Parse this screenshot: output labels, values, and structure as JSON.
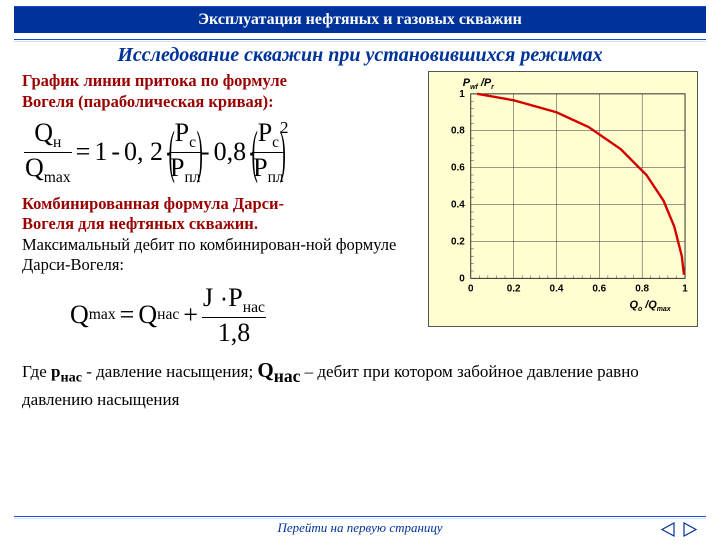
{
  "header": {
    "title": "Эксплуатация нефтяных и газовых скважин"
  },
  "subtitle": "Исследование скважин при установившихся режимах",
  "intro_l1": "График линии притока по формуле",
  "intro_l2": "Вогеля (параболическая кривая):",
  "formula1": {
    "Qn": "Q",
    "Qn_sub": "н",
    "Qmax": "Q",
    "Qmax_sub": "max",
    "eq": "=",
    "one": "1",
    "minus1": "-",
    "c1": "0, 2",
    "dot1": "·",
    "Pc": "P",
    "Pc_sub": "с",
    "Ppl": "P",
    "Ppl_sub": "пл",
    "minus2": "-",
    "c2": "0,8",
    "dot2": "·",
    "sup": "2"
  },
  "label2_red_l1": "Комбинированная формула Дарси-",
  "label2_red_l2": "Вогеля для нефтяных скважин.",
  "label2_black": "Максимальный дебит по комбинирован-ной формуле Дарси-Вогеля:",
  "formula2": {
    "Qmax": "Q",
    "Qmax_sub": "max",
    "eq": "=",
    "Qnas": "Q",
    "Qnas_sub": "нас",
    "plus": "+",
    "J": "J",
    "dot": "·",
    "Pn": "P",
    "Pn_sub": "нас",
    "den": "1,8"
  },
  "bottom": {
    "t1": "Где ",
    "pnas": "р",
    "pnas_sub": "нас",
    "t2": " - давление насыщения;   ",
    "Qnas": "Q",
    "Qnas_sub": "нас",
    "t3": " – дебит при котором забойное давление равно давлению насыщения"
  },
  "chart": {
    "curve_color": "#d40000",
    "grid_color": "#333333",
    "bg_color": "#fffed0",
    "xlim": [
      0,
      1
    ],
    "ylim": [
      0,
      1
    ],
    "tick_step": 0.2,
    "xticks": [
      "0",
      "0.2",
      "0.4",
      "0.6",
      "0.8",
      "1"
    ],
    "yticks": [
      "0",
      "0.2",
      "0.4",
      "0.6",
      "0.8",
      "1"
    ],
    "ylabel_1": "P",
    "ylabel_1sub": "wf",
    "ylabel_slash": "/",
    "ylabel_2": "P",
    "ylabel_2sub": "r",
    "ylabel_bar": "‾",
    "xlabel_1": "Q",
    "xlabel_1sub": "o",
    "xlabel_slash": " /",
    "xlabel_2": "Q",
    "xlabel_2sub": "max",
    "curve_points": [
      [
        0.03,
        1.0
      ],
      [
        0.2,
        0.965
      ],
      [
        0.4,
        0.9
      ],
      [
        0.55,
        0.82
      ],
      [
        0.7,
        0.7
      ],
      [
        0.82,
        0.56
      ],
      [
        0.9,
        0.42
      ],
      [
        0.95,
        0.28
      ],
      [
        0.985,
        0.12
      ],
      [
        0.995,
        0.02
      ]
    ]
  },
  "footer": {
    "text": "Перейти на первую страницу"
  },
  "colors": {
    "blue": "#003399",
    "red": "#990000",
    "curve": "#d40000",
    "chart_bg": "#fffed0"
  }
}
